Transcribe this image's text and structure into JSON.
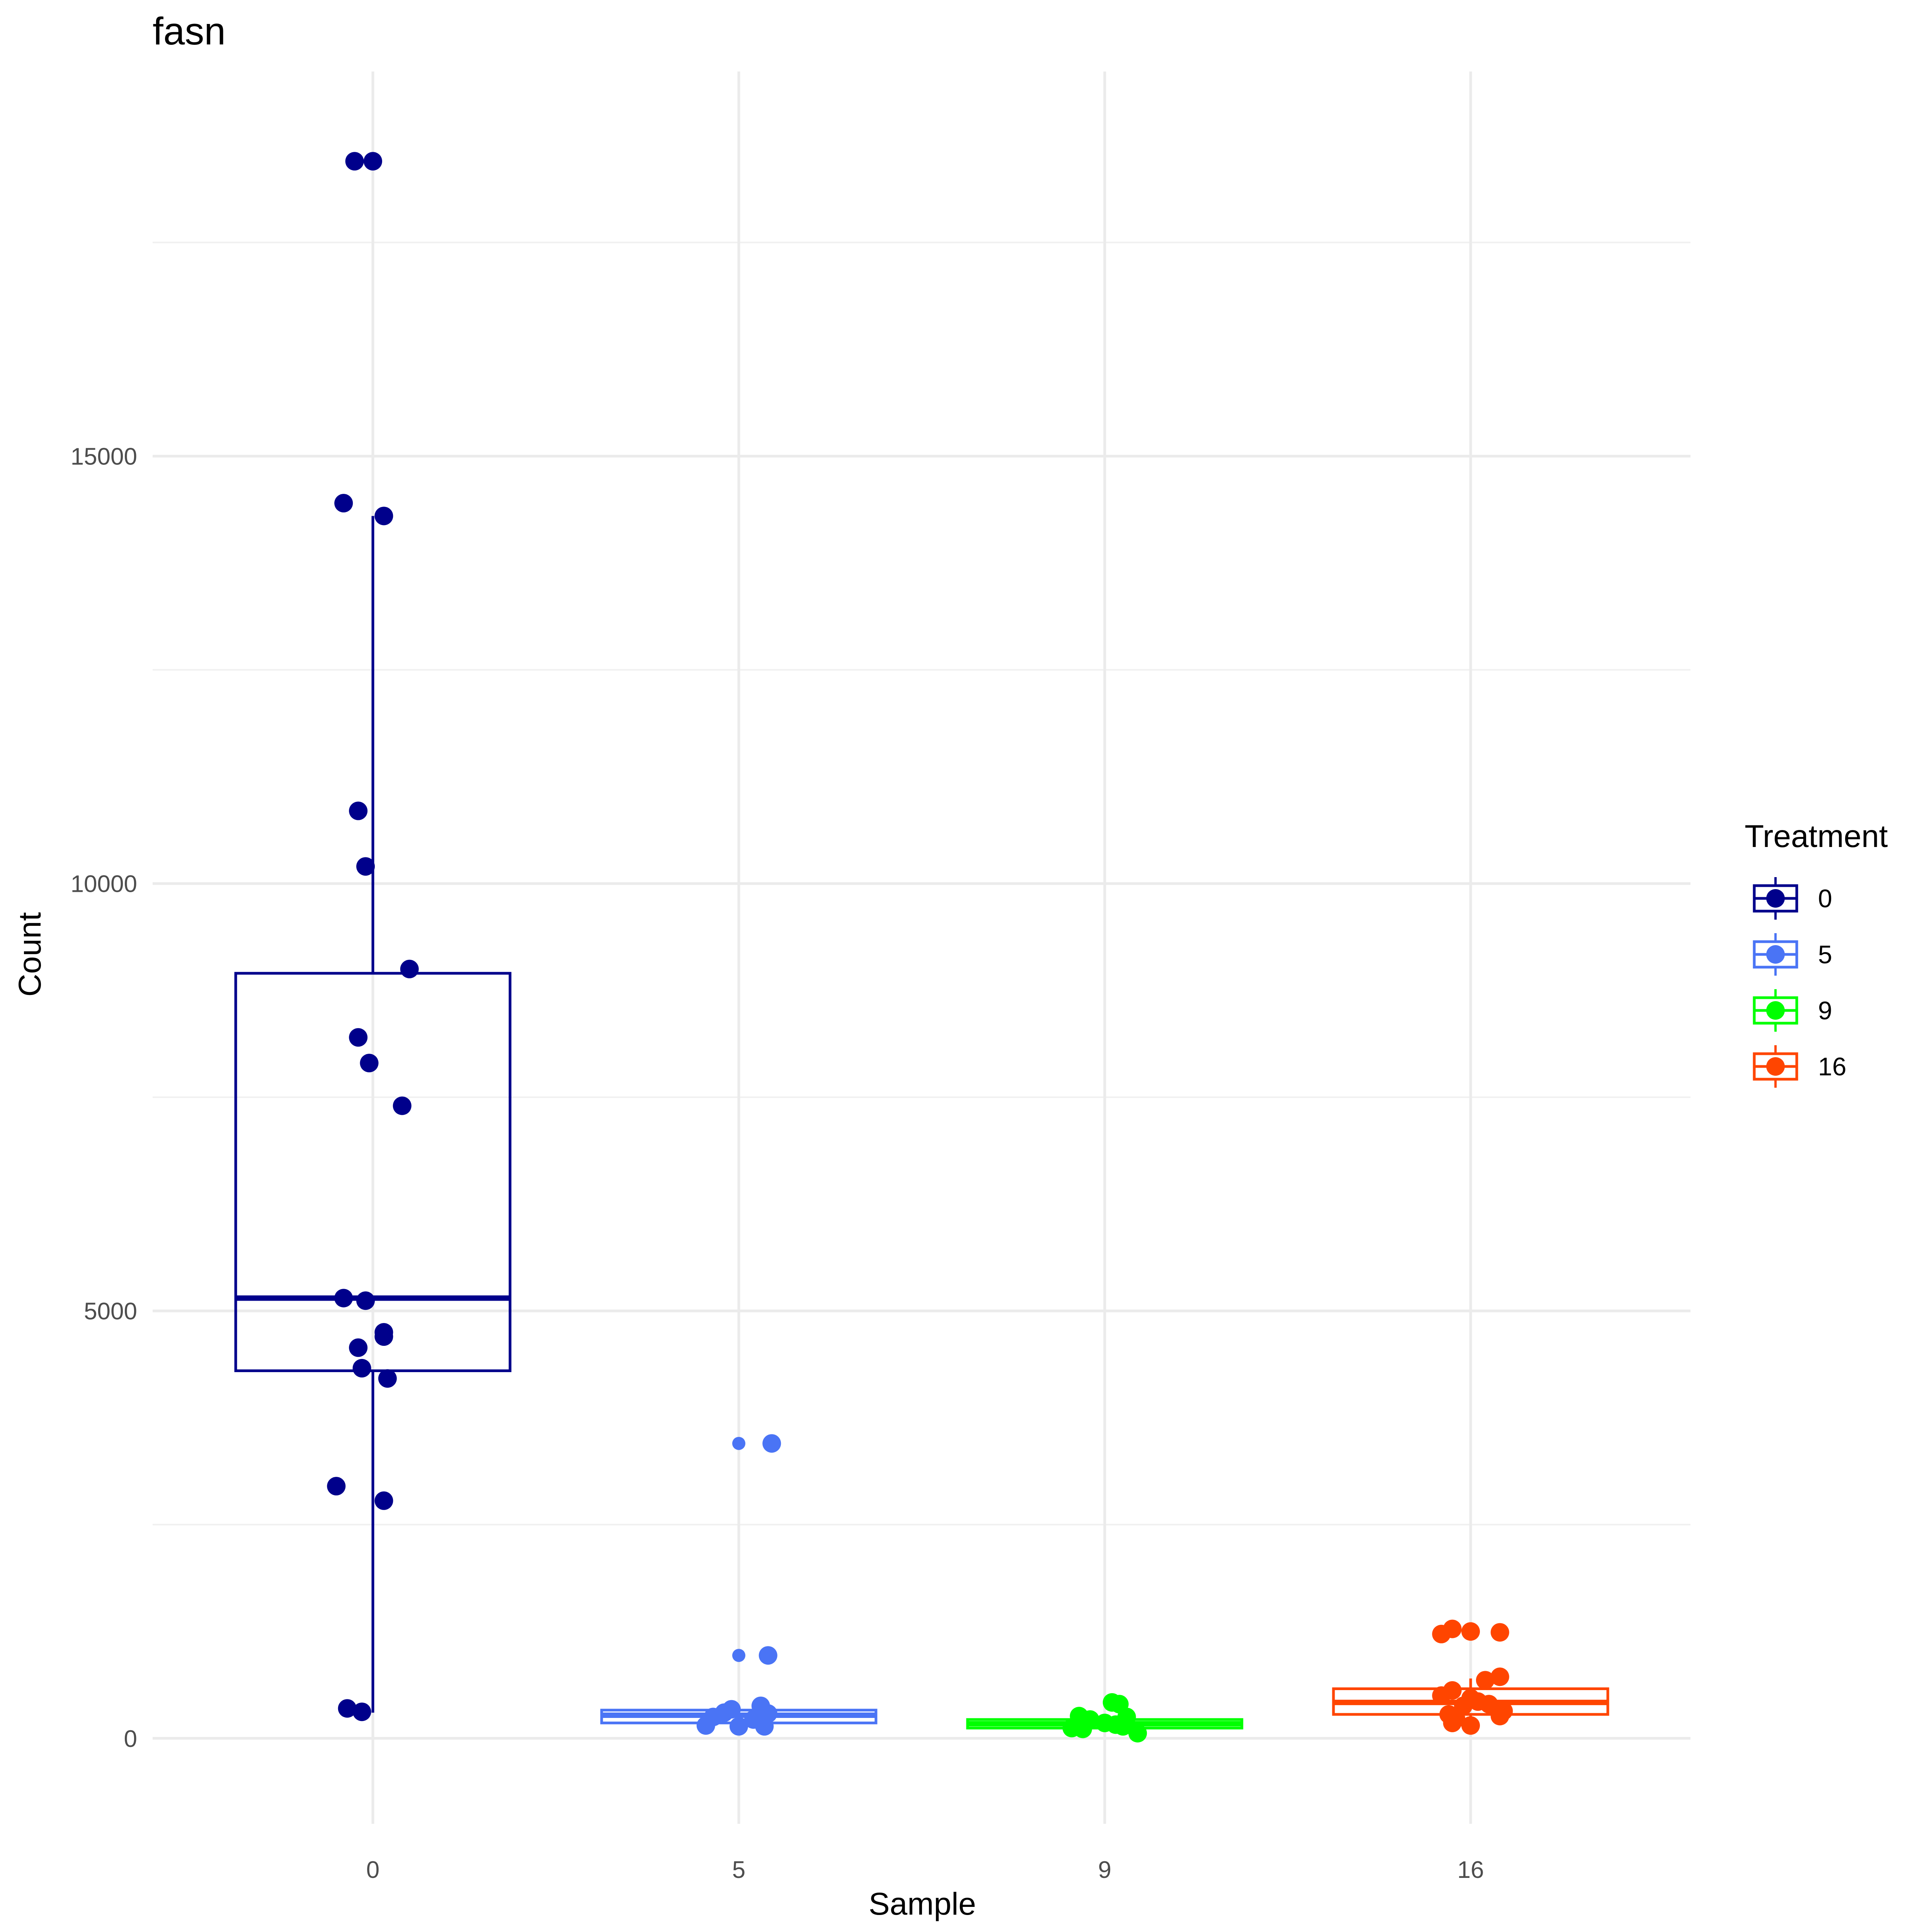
{
  "chart_data": {
    "type": "boxplot",
    "title": "fasn",
    "xlabel": "Sample",
    "ylabel": "Count",
    "categories": [
      "0",
      "5",
      "9",
      "16"
    ],
    "ylim": [
      -1000,
      19500
    ],
    "yticks": [
      0,
      5000,
      10000,
      15000
    ],
    "ytick_labels": [
      "0",
      "5000",
      "10000",
      "15000"
    ],
    "grid": true,
    "legend": {
      "title": "Treatment",
      "position": "right",
      "entries": [
        {
          "label": "0",
          "color": "#00008B"
        },
        {
          "label": "5",
          "color": "#4A74F5"
        },
        {
          "label": "9",
          "color": "#00FF00"
        },
        {
          "label": "16",
          "color": "#FF4500"
        }
      ]
    },
    "boxes": [
      {
        "category": "0",
        "color": "#00008B",
        "whisker_low": 300,
        "q1": 4300,
        "median": 5150,
        "q3": 8950,
        "whisker_high": 14300
      },
      {
        "category": "5",
        "color": "#4A74F5",
        "whisker_low": 150,
        "q1": 180,
        "median": 270,
        "q3": 330,
        "whisker_high": 380
      },
      {
        "category": "9",
        "color": "#00FF00",
        "whisker_low": 80,
        "q1": 120,
        "median": 170,
        "q3": 220,
        "whisker_high": 260
      },
      {
        "category": "16",
        "color": "#FF4500",
        "whisker_low": 200,
        "q1": 280,
        "median": 420,
        "q3": 580,
        "whisker_high": 700
      }
    ],
    "points": [
      {
        "category": "0",
        "color": "#00008B",
        "jitter": -0.05,
        "y": 18450
      },
      {
        "category": "0",
        "color": "#00008B",
        "jitter": 0.0,
        "y": 18450
      },
      {
        "category": "0",
        "color": "#00008B",
        "jitter": -0.08,
        "y": 14450
      },
      {
        "category": "0",
        "color": "#00008B",
        "jitter": 0.03,
        "y": 14300
      },
      {
        "category": "0",
        "color": "#00008B",
        "jitter": -0.04,
        "y": 10850
      },
      {
        "category": "0",
        "color": "#00008B",
        "jitter": -0.02,
        "y": 10200
      },
      {
        "category": "0",
        "color": "#00008B",
        "jitter": 0.1,
        "y": 9000
      },
      {
        "category": "0",
        "color": "#00008B",
        "jitter": -0.04,
        "y": 8200
      },
      {
        "category": "0",
        "color": "#00008B",
        "jitter": -0.01,
        "y": 7900
      },
      {
        "category": "0",
        "color": "#00008B",
        "jitter": 0.08,
        "y": 7400
      },
      {
        "category": "0",
        "color": "#00008B",
        "jitter": -0.08,
        "y": 5150
      },
      {
        "category": "0",
        "color": "#00008B",
        "jitter": -0.02,
        "y": 5120
      },
      {
        "category": "0",
        "color": "#00008B",
        "jitter": 0.03,
        "y": 4750
      },
      {
        "category": "0",
        "color": "#00008B",
        "jitter": 0.03,
        "y": 4700
      },
      {
        "category": "0",
        "color": "#00008B",
        "jitter": -0.04,
        "y": 4570
      },
      {
        "category": "0",
        "color": "#00008B",
        "jitter": -0.03,
        "y": 4330
      },
      {
        "category": "0",
        "color": "#00008B",
        "jitter": 0.04,
        "y": 4210
      },
      {
        "category": "0",
        "color": "#00008B",
        "jitter": -0.1,
        "y": 2950
      },
      {
        "category": "0",
        "color": "#00008B",
        "jitter": 0.03,
        "y": 2780
      },
      {
        "category": "0",
        "color": "#00008B",
        "jitter": -0.07,
        "y": 350
      },
      {
        "category": "0",
        "color": "#00008B",
        "jitter": -0.03,
        "y": 310
      },
      {
        "category": "5",
        "color": "#4A74F5",
        "jitter": 0.0,
        "y": 3450,
        "size": "small"
      },
      {
        "category": "5",
        "color": "#4A74F5",
        "jitter": 0.09,
        "y": 3450
      },
      {
        "category": "5",
        "color": "#4A74F5",
        "jitter": 0.0,
        "y": 970,
        "size": "small"
      },
      {
        "category": "5",
        "color": "#4A74F5",
        "jitter": 0.08,
        "y": 970
      },
      {
        "category": "5",
        "color": "#4A74F5",
        "jitter": 0.06,
        "y": 380
      },
      {
        "category": "5",
        "color": "#4A74F5",
        "jitter": -0.02,
        "y": 340
      },
      {
        "category": "5",
        "color": "#4A74F5",
        "jitter": -0.04,
        "y": 300
      },
      {
        "category": "5",
        "color": "#4A74F5",
        "jitter": 0.08,
        "y": 290
      },
      {
        "category": "5",
        "color": "#4A74F5",
        "jitter": -0.07,
        "y": 250
      },
      {
        "category": "5",
        "color": "#4A74F5",
        "jitter": 0.04,
        "y": 220
      },
      {
        "category": "5",
        "color": "#4A74F5",
        "jitter": -0.09,
        "y": 150
      },
      {
        "category": "5",
        "color": "#4A74F5",
        "jitter": 0.0,
        "y": 140
      },
      {
        "category": "5",
        "color": "#4A74F5",
        "jitter": 0.07,
        "y": 140
      },
      {
        "category": "9",
        "color": "#00FF00",
        "jitter": 0.02,
        "y": 420
      },
      {
        "category": "9",
        "color": "#00FF00",
        "jitter": 0.04,
        "y": 400
      },
      {
        "category": "9",
        "color": "#00FF00",
        "jitter": -0.07,
        "y": 260
      },
      {
        "category": "9",
        "color": "#00FF00",
        "jitter": 0.06,
        "y": 250
      },
      {
        "category": "9",
        "color": "#00FF00",
        "jitter": -0.04,
        "y": 220
      },
      {
        "category": "9",
        "color": "#00FF00",
        "jitter": 0.0,
        "y": 180
      },
      {
        "category": "9",
        "color": "#00FF00",
        "jitter": 0.03,
        "y": 160
      },
      {
        "category": "9",
        "color": "#00FF00",
        "jitter": -0.09,
        "y": 120
      },
      {
        "category": "9",
        "color": "#00FF00",
        "jitter": -0.06,
        "y": 110
      },
      {
        "category": "9",
        "color": "#00FF00",
        "jitter": 0.05,
        "y": 140
      },
      {
        "category": "9",
        "color": "#00FF00",
        "jitter": 0.09,
        "y": 60
      },
      {
        "category": "16",
        "color": "#FF4500",
        "jitter": -0.05,
        "y": 1280
      },
      {
        "category": "16",
        "color": "#FF4500",
        "jitter": -0.08,
        "y": 1220
      },
      {
        "category": "16",
        "color": "#FF4500",
        "jitter": 0.0,
        "y": 1250
      },
      {
        "category": "16",
        "color": "#FF4500",
        "jitter": 0.08,
        "y": 1240
      },
      {
        "category": "16",
        "color": "#FF4500",
        "jitter": 0.08,
        "y": 720
      },
      {
        "category": "16",
        "color": "#FF4500",
        "jitter": 0.04,
        "y": 680
      },
      {
        "category": "16",
        "color": "#FF4500",
        "jitter": -0.05,
        "y": 560
      },
      {
        "category": "16",
        "color": "#FF4500",
        "jitter": -0.08,
        "y": 500
      },
      {
        "category": "16",
        "color": "#FF4500",
        "jitter": 0.0,
        "y": 470
      },
      {
        "category": "16",
        "color": "#FF4500",
        "jitter": 0.02,
        "y": 430
      },
      {
        "category": "16",
        "color": "#FF4500",
        "jitter": 0.05,
        "y": 400
      },
      {
        "category": "16",
        "color": "#FF4500",
        "jitter": -0.02,
        "y": 380
      },
      {
        "category": "16",
        "color": "#FF4500",
        "jitter": 0.09,
        "y": 320
      },
      {
        "category": "16",
        "color": "#FF4500",
        "jitter": 0.08,
        "y": 260
      },
      {
        "category": "16",
        "color": "#FF4500",
        "jitter": -0.06,
        "y": 280
      },
      {
        "category": "16",
        "color": "#FF4500",
        "jitter": -0.04,
        "y": 230
      },
      {
        "category": "16",
        "color": "#FF4500",
        "jitter": 0.0,
        "y": 150
      },
      {
        "category": "16",
        "color": "#FF4500",
        "jitter": -0.05,
        "y": 180
      }
    ]
  }
}
